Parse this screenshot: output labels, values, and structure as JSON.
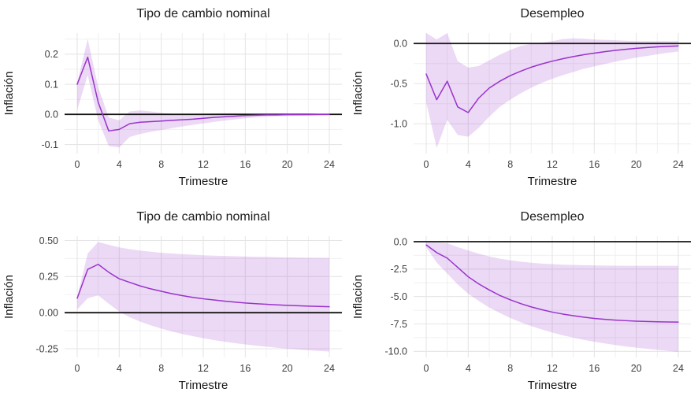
{
  "figure": {
    "description": "2x2 grid of impulse-response plots with confidence bands",
    "panel_titles": [
      "Tipo de cambio nominal",
      "Desempleo",
      "Tipo de cambio nominal",
      "Desempleo"
    ]
  },
  "colors": {
    "line": "#9933cc",
    "band": "rgba(153,51,204,0.19)",
    "grid_major": "#e5e5e5",
    "grid_minor": "#f0f0f0",
    "zero_line": "#151515",
    "title": "#1a1a1a",
    "tick": "#404040"
  },
  "chart_data": [
    {
      "type": "area",
      "title": "Tipo de cambio nominal",
      "xlabel": "Trimestre",
      "ylabel": "Inflación",
      "x": [
        0,
        1,
        2,
        3,
        4,
        5,
        6,
        7,
        8,
        9,
        10,
        11,
        12,
        13,
        14,
        15,
        16,
        17,
        18,
        19,
        20,
        21,
        22,
        23,
        24
      ],
      "line": [
        0.1,
        0.19,
        0.04,
        -0.055,
        -0.05,
        -0.031,
        -0.026,
        -0.024,
        -0.022,
        -0.02,
        -0.018,
        -0.016,
        -0.013,
        -0.01,
        -0.008,
        -0.006,
        -0.004,
        -0.003,
        -0.002,
        -0.002,
        -0.001,
        -0.001,
        -0.001,
        0.0,
        0.0
      ],
      "band_upper": [
        0.105,
        0.25,
        0.09,
        -0.01,
        -0.02,
        0.01,
        0.013,
        0.01,
        0.005,
        0.002,
        0.001,
        0.001,
        0.002,
        0.003,
        0.004,
        0.004,
        0.003,
        0.002,
        0.002,
        0.001,
        0.001,
        0.001,
        0.001,
        0.001,
        0.001
      ],
      "band_lower": [
        0.015,
        0.13,
        -0.02,
        -0.105,
        -0.11,
        -0.075,
        -0.065,
        -0.058,
        -0.052,
        -0.046,
        -0.04,
        -0.035,
        -0.03,
        -0.025,
        -0.021,
        -0.017,
        -0.013,
        -0.01,
        -0.008,
        -0.006,
        -0.005,
        -0.004,
        -0.003,
        -0.003,
        -0.002
      ],
      "hline": 0,
      "xlim": [
        -1.2,
        25.2
      ],
      "ylim": [
        -0.13,
        0.27
      ],
      "xticks": [
        0,
        4,
        8,
        12,
        16,
        20,
        24
      ],
      "xtick_labels": [
        "0",
        "4",
        "8",
        "12",
        "16",
        "20",
        "24"
      ],
      "xminor": [
        2,
        6,
        10,
        14,
        18,
        22
      ],
      "yticks": [
        0.2,
        0.1,
        0.0,
        -0.1
      ],
      "ytick_labels": [
        "0.2",
        "0.1",
        "0.0",
        "-0.1"
      ],
      "yminor": [
        0.25,
        0.15,
        0.05,
        -0.05
      ]
    },
    {
      "type": "area",
      "title": "Desempleo",
      "xlabel": "Trimestre",
      "ylabel": "Inflación",
      "x": [
        0,
        1,
        2,
        3,
        4,
        5,
        6,
        7,
        8,
        9,
        10,
        11,
        12,
        13,
        14,
        15,
        16,
        17,
        18,
        19,
        20,
        21,
        22,
        23,
        24
      ],
      "line": [
        -0.38,
        -0.7,
        -0.47,
        -0.79,
        -0.86,
        -0.68,
        -0.555,
        -0.47,
        -0.4,
        -0.345,
        -0.295,
        -0.255,
        -0.22,
        -0.19,
        -0.163,
        -0.14,
        -0.12,
        -0.102,
        -0.086,
        -0.072,
        -0.06,
        -0.05,
        -0.042,
        -0.035,
        -0.03
      ],
      "band_upper": [
        0.13,
        0.05,
        0.13,
        -0.22,
        -0.3,
        -0.28,
        -0.21,
        -0.14,
        -0.08,
        -0.03,
        -0.005,
        0.01,
        0.03,
        0.055,
        0.065,
        0.06,
        0.05,
        0.045,
        0.04,
        0.035,
        0.03,
        0.03,
        0.03,
        0.03,
        0.03
      ],
      "band_lower": [
        -0.73,
        -1.3,
        -0.95,
        -1.14,
        -1.16,
        -1.05,
        -0.91,
        -0.79,
        -0.7,
        -0.62,
        -0.55,
        -0.49,
        -0.44,
        -0.395,
        -0.355,
        -0.315,
        -0.285,
        -0.255,
        -0.225,
        -0.2,
        -0.175,
        -0.155,
        -0.135,
        -0.115,
        -0.1
      ],
      "hline": 0,
      "xlim": [
        -1.2,
        25.2
      ],
      "ylim": [
        -1.37,
        0.13
      ],
      "xticks": [
        0,
        4,
        8,
        12,
        16,
        20,
        24
      ],
      "xtick_labels": [
        "0",
        "4",
        "8",
        "12",
        "16",
        "20",
        "24"
      ],
      "xminor": [
        2,
        6,
        10,
        14,
        18,
        22
      ],
      "yticks": [
        0.0,
        -0.5,
        -1.0
      ],
      "ytick_labels": [
        "0.0",
        "-0.5",
        "-1.0"
      ],
      "yminor": [
        -0.25,
        -0.75,
        -1.25
      ]
    },
    {
      "type": "area",
      "title": "Tipo de cambio nominal",
      "xlabel": "Trimestre",
      "ylabel": "Inflación",
      "x": [
        0,
        1,
        2,
        3,
        4,
        5,
        6,
        7,
        8,
        9,
        10,
        11,
        12,
        13,
        14,
        15,
        16,
        17,
        18,
        19,
        20,
        21,
        22,
        23,
        24
      ],
      "line": [
        0.1,
        0.3,
        0.335,
        0.28,
        0.235,
        0.21,
        0.185,
        0.165,
        0.148,
        0.132,
        0.118,
        0.106,
        0.096,
        0.088,
        0.08,
        0.073,
        0.067,
        0.062,
        0.058,
        0.054,
        0.051,
        0.048,
        0.045,
        0.043,
        0.041
      ],
      "band_upper": [
        0.107,
        0.41,
        0.49,
        0.47,
        0.452,
        0.44,
        0.43,
        0.422,
        0.415,
        0.41,
        0.405,
        0.402,
        0.398,
        0.395,
        0.393,
        0.391,
        0.389,
        0.387,
        0.386,
        0.384,
        0.383,
        0.382,
        0.381,
        0.38,
        0.379
      ],
      "band_lower": [
        0.022,
        0.1,
        0.12,
        0.062,
        0.008,
        -0.032,
        -0.062,
        -0.088,
        -0.11,
        -0.13,
        -0.148,
        -0.163,
        -0.177,
        -0.19,
        -0.201,
        -0.211,
        -0.22,
        -0.228,
        -0.236,
        -0.243,
        -0.249,
        -0.255,
        -0.26,
        -0.265,
        -0.269
      ],
      "hline": 0,
      "xlim": [
        -1.2,
        25.2
      ],
      "ylim": [
        -0.31,
        0.53
      ],
      "xticks": [
        0,
        4,
        8,
        12,
        16,
        20,
        24
      ],
      "xtick_labels": [
        "0",
        "4",
        "8",
        "12",
        "16",
        "20",
        "24"
      ],
      "xminor": [
        2,
        6,
        10,
        14,
        18,
        22
      ],
      "yticks": [
        0.5,
        0.25,
        0.0,
        -0.25
      ],
      "ytick_labels": [
        "0.50",
        "0.25",
        "0.00",
        "-0.25"
      ],
      "yminor": [
        0.375,
        0.125,
        -0.125
      ]
    },
    {
      "type": "area",
      "title": "Desempleo",
      "xlabel": "Trimestre",
      "ylabel": "Inflación",
      "x": [
        0,
        1,
        2,
        3,
        4,
        5,
        6,
        7,
        8,
        9,
        10,
        11,
        12,
        13,
        14,
        15,
        16,
        17,
        18,
        19,
        20,
        21,
        22,
        23,
        24
      ],
      "line": [
        -0.3,
        -1.0,
        -1.5,
        -2.35,
        -3.2,
        -3.85,
        -4.4,
        -4.9,
        -5.3,
        -5.65,
        -5.95,
        -6.2,
        -6.42,
        -6.6,
        -6.75,
        -6.88,
        -7.0,
        -7.08,
        -7.15,
        -7.2,
        -7.25,
        -7.28,
        -7.3,
        -7.32,
        -7.33
      ],
      "band_upper": [
        -0.08,
        -0.1,
        -0.15,
        -0.5,
        -0.8,
        -1.1,
        -1.35,
        -1.55,
        -1.7,
        -1.82,
        -1.92,
        -2.0,
        -2.05,
        -2.1,
        -2.12,
        -2.15,
        -2.16,
        -2.18,
        -2.19,
        -2.2,
        -2.2,
        -2.2,
        -2.2,
        -2.2,
        -2.2
      ],
      "band_lower": [
        -0.5,
        -1.9,
        -2.9,
        -3.9,
        -4.75,
        -5.4,
        -6.0,
        -6.5,
        -6.95,
        -7.35,
        -7.7,
        -8.0,
        -8.28,
        -8.53,
        -8.75,
        -8.95,
        -9.12,
        -9.28,
        -9.42,
        -9.55,
        -9.66,
        -9.76,
        -9.86,
        -9.95,
        -10.05
      ],
      "hline": 0,
      "xlim": [
        -1.2,
        25.2
      ],
      "ylim": [
        -10.55,
        0.5
      ],
      "xticks": [
        0,
        4,
        8,
        12,
        16,
        20,
        24
      ],
      "xtick_labels": [
        "0",
        "4",
        "8",
        "12",
        "16",
        "20",
        "24"
      ],
      "xminor": [
        2,
        6,
        10,
        14,
        18,
        22
      ],
      "yticks": [
        0.0,
        -2.5,
        -5.0,
        -7.5,
        -10.0
      ],
      "ytick_labels": [
        "0.0",
        "-2.5",
        "-5.0",
        "-7.5",
        "-10.0"
      ],
      "yminor": [
        -1.25,
        -3.75,
        -6.25,
        -8.75
      ]
    }
  ]
}
